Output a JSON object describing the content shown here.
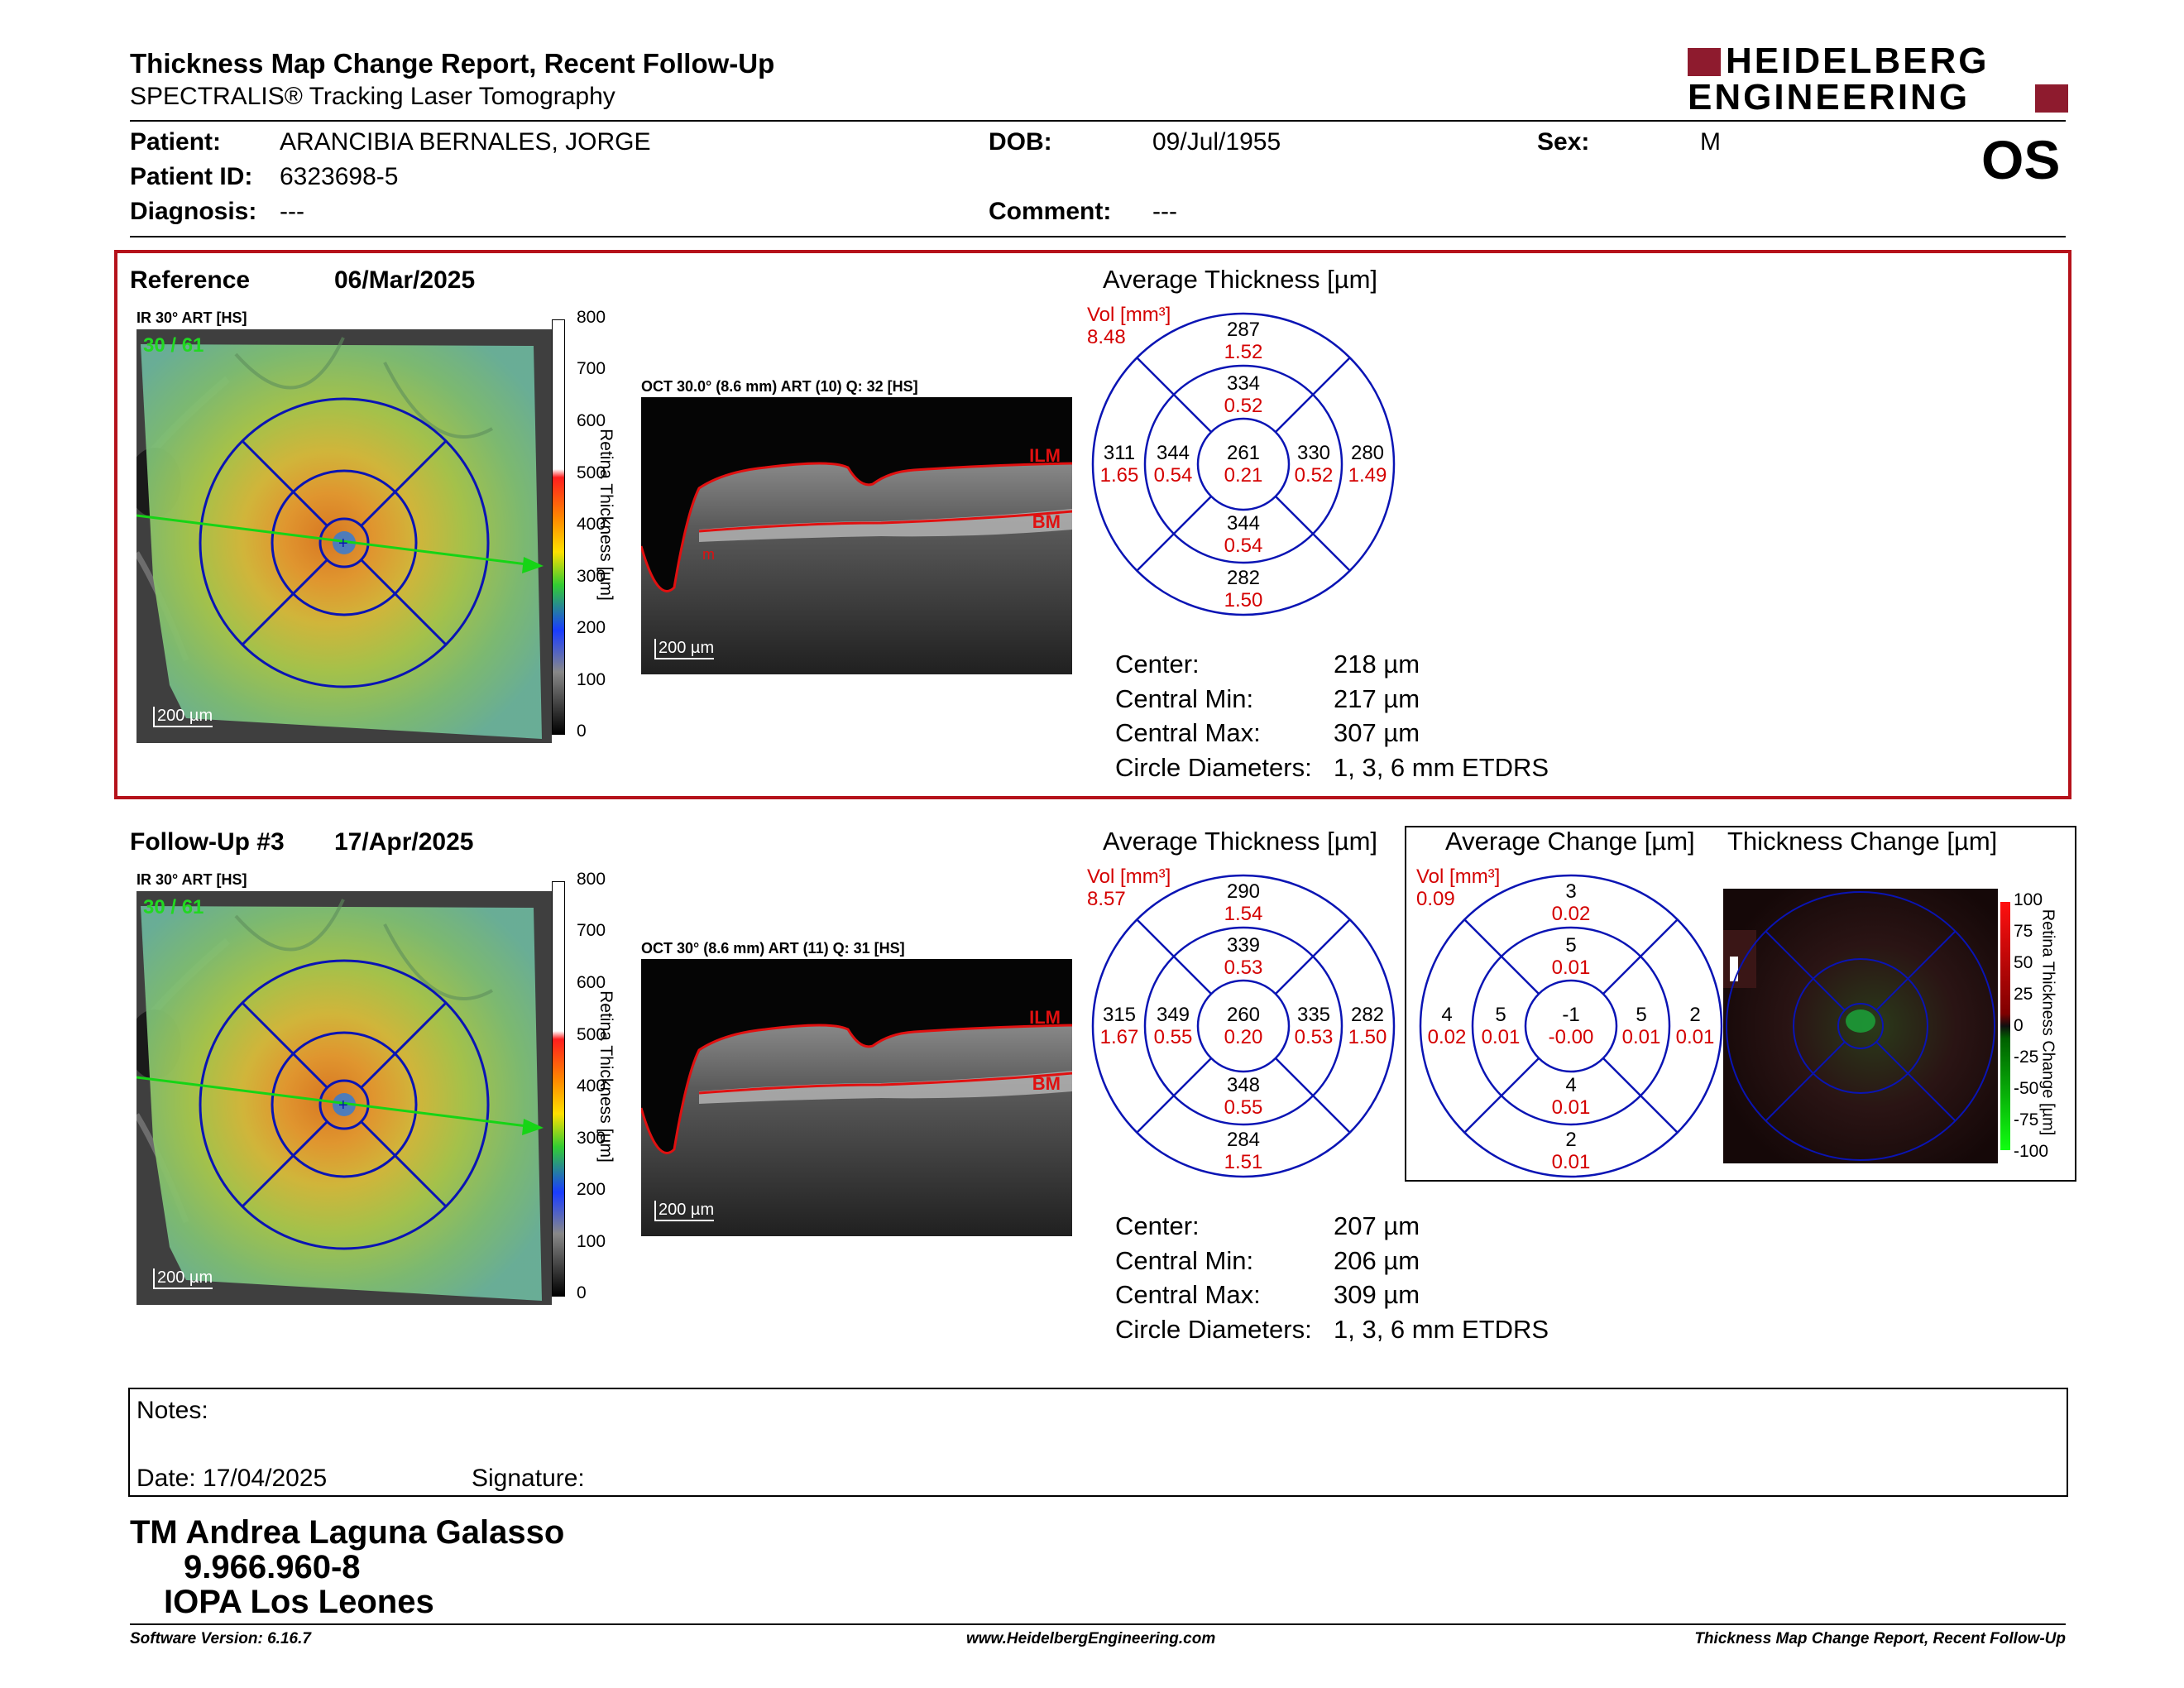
{
  "header": {
    "title": "Thickness Map Change Report, Recent Follow-Up",
    "subtitle": "SPECTRALIS® Tracking Laser Tomography",
    "logo_line1": "HEIDELBERG",
    "logo_line2": "ENGINEERING",
    "eye": "OS"
  },
  "patient": {
    "patient_label": "Patient:",
    "patient_value": "ARANCIBIA BERNALES, JORGE",
    "id_label": "Patient ID:",
    "id_value": "6323698-5",
    "diag_label": "Diagnosis:",
    "diag_value": "---",
    "dob_label": "DOB:",
    "dob_value": "09/Jul/1955",
    "comment_label": "Comment:",
    "comment_value": "---",
    "sex_label": "Sex:",
    "sex_value": "M"
  },
  "reference": {
    "label": "Reference",
    "date": "06/Mar/2025",
    "ir_label": "IR 30° ART [HS]",
    "ir_counter": "30 / 61",
    "ir_scale": "200 µm",
    "oct_label": "OCT 30.0° (8.6 mm) ART (10) Q: 32 [HS]",
    "oct_scale": "200 µm",
    "layer_top": "ILM",
    "layer_bottom": "BM",
    "layer_marker": "m",
    "colorbar_ticks": [
      "800",
      "700",
      "600",
      "500",
      "400",
      "300",
      "200",
      "100",
      "0"
    ],
    "colorbar_title": "Retina Thickness [µm]",
    "avg_title": "Average Thickness [µm]",
    "vol_label": "Vol [mm³]",
    "vol_total": "8.48",
    "grid": {
      "outer_top": [
        "287",
        "1.52"
      ],
      "inner_top": [
        "334",
        "0.52"
      ],
      "outer_left": [
        "311",
        "1.65"
      ],
      "inner_left": [
        "344",
        "0.54"
      ],
      "center": [
        "261",
        "0.21"
      ],
      "inner_right": [
        "330",
        "0.52"
      ],
      "outer_right": [
        "280",
        "1.49"
      ],
      "inner_bottom": [
        "344",
        "0.54"
      ],
      "outer_bottom": [
        "282",
        "1.50"
      ]
    },
    "stats": {
      "center_label": "Center:",
      "center_value": "218 µm",
      "min_label": "Central Min:",
      "min_value": "217 µm",
      "max_label": "Central Max:",
      "max_value": "307 µm",
      "diam_label": "Circle Diameters:",
      "diam_value": "1, 3, 6 mm ETDRS"
    }
  },
  "followup": {
    "label": "Follow-Up #3",
    "date": "17/Apr/2025",
    "ir_label": "IR 30° ART [HS]",
    "ir_counter": "30 / 61",
    "ir_scale": "200 µm",
    "oct_label": "OCT 30° (8.6 mm) ART (11) Q: 31 [HS]",
    "oct_scale": "200 µm",
    "layer_top": "ILM",
    "layer_bottom": "BM",
    "colorbar_ticks": [
      "800",
      "700",
      "600",
      "500",
      "400",
      "300",
      "200",
      "100",
      "0"
    ],
    "colorbar_title": "Retina Thickness [µm]",
    "avg_title": "Average Thickness [µm]",
    "vol_label": "Vol [mm³]",
    "vol_total": "8.57",
    "grid": {
      "outer_top": [
        "290",
        "1.54"
      ],
      "inner_top": [
        "339",
        "0.53"
      ],
      "outer_left": [
        "315",
        "1.67"
      ],
      "inner_left": [
        "349",
        "0.55"
      ],
      "center": [
        "260",
        "0.20"
      ],
      "inner_right": [
        "335",
        "0.53"
      ],
      "outer_right": [
        "282",
        "1.50"
      ],
      "inner_bottom": [
        "348",
        "0.55"
      ],
      "outer_bottom": [
        "284",
        "1.51"
      ]
    },
    "stats": {
      "center_label": "Center:",
      "center_value": "207 µm",
      "min_label": "Central Min:",
      "min_value": "206 µm",
      "max_label": "Central Max:",
      "max_value": "309 µm",
      "diam_label": "Circle Diameters:",
      "diam_value": "1, 3, 6 mm ETDRS"
    },
    "change": {
      "avg_change_title": "Average Change [µm]",
      "thick_change_title": "Thickness Change [µm]",
      "vol_label": "Vol [mm³]",
      "vol_total": "0.09",
      "grid": {
        "outer_top": [
          "3",
          "0.02"
        ],
        "inner_top": [
          "5",
          "0.01"
        ],
        "outer_left": [
          "4",
          "0.02"
        ],
        "inner_left": [
          "5",
          "0.01"
        ],
        "center": [
          "-1",
          "-0.00"
        ],
        "inner_right": [
          "5",
          "0.01"
        ],
        "outer_right": [
          "2",
          "0.01"
        ],
        "inner_bottom": [
          "4",
          "0.01"
        ],
        "outer_bottom": [
          "2",
          "0.01"
        ]
      },
      "colorbar_ticks": [
        "100",
        "75",
        "50",
        "25",
        "0",
        "-25",
        "-50",
        "-75",
        "-100"
      ],
      "colorbar_title": "Retina Thickness Change [µm]"
    }
  },
  "notes": {
    "notes_label": "Notes:",
    "date_label": "Date: 17/04/2025",
    "signature_label": "Signature:"
  },
  "signature": {
    "name": "TM Andrea Laguna Galasso",
    "rut": "9.966.960-8",
    "institution": "IOPA Los Leones"
  },
  "footer": {
    "software": "Software Version: 6.16.7",
    "website": "www.HeidelbergEngineering.com",
    "report": "Thickness Map Change Report, Recent Follow-Up"
  },
  "colors": {
    "frame_red": "#b5121b",
    "grid_blue": "#0a14b4",
    "value_red": "#d40000",
    "logo_red": "#8e1b2e"
  }
}
